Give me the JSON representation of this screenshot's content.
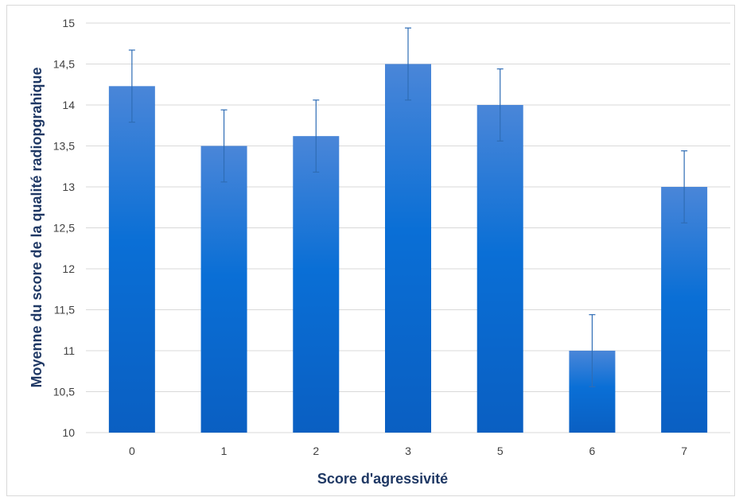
{
  "chart_data": {
    "type": "bar",
    "categories": [
      "0",
      "1",
      "2",
      "3",
      "5",
      "6",
      "7"
    ],
    "values": [
      14.23,
      13.5,
      13.62,
      14.5,
      14.0,
      11.0,
      13.0
    ],
    "error": [
      0.44,
      0.44,
      0.44,
      0.44,
      0.44,
      0.44,
      0.44
    ],
    "xlabel": "Score d'agressivité",
    "ylabel": "Moyenne du score de la qualité radiopgrahique",
    "ylim": [
      10,
      15
    ],
    "yticks": [
      "10",
      "10,5",
      "11",
      "11,5",
      "12",
      "12,5",
      "13",
      "13,5",
      "14",
      "14,5",
      "15"
    ],
    "ytick_values": [
      10,
      10.5,
      11,
      11.5,
      12,
      12.5,
      13,
      13.5,
      14,
      14.5,
      15
    ],
    "grid": true,
    "colors": {
      "bar_top": "#4a86d8",
      "bar_mid": "#0a6fd6",
      "bar_bottom": "#0a5fc2",
      "error": "#2f6db5",
      "grid": "#d9d9d9"
    }
  }
}
